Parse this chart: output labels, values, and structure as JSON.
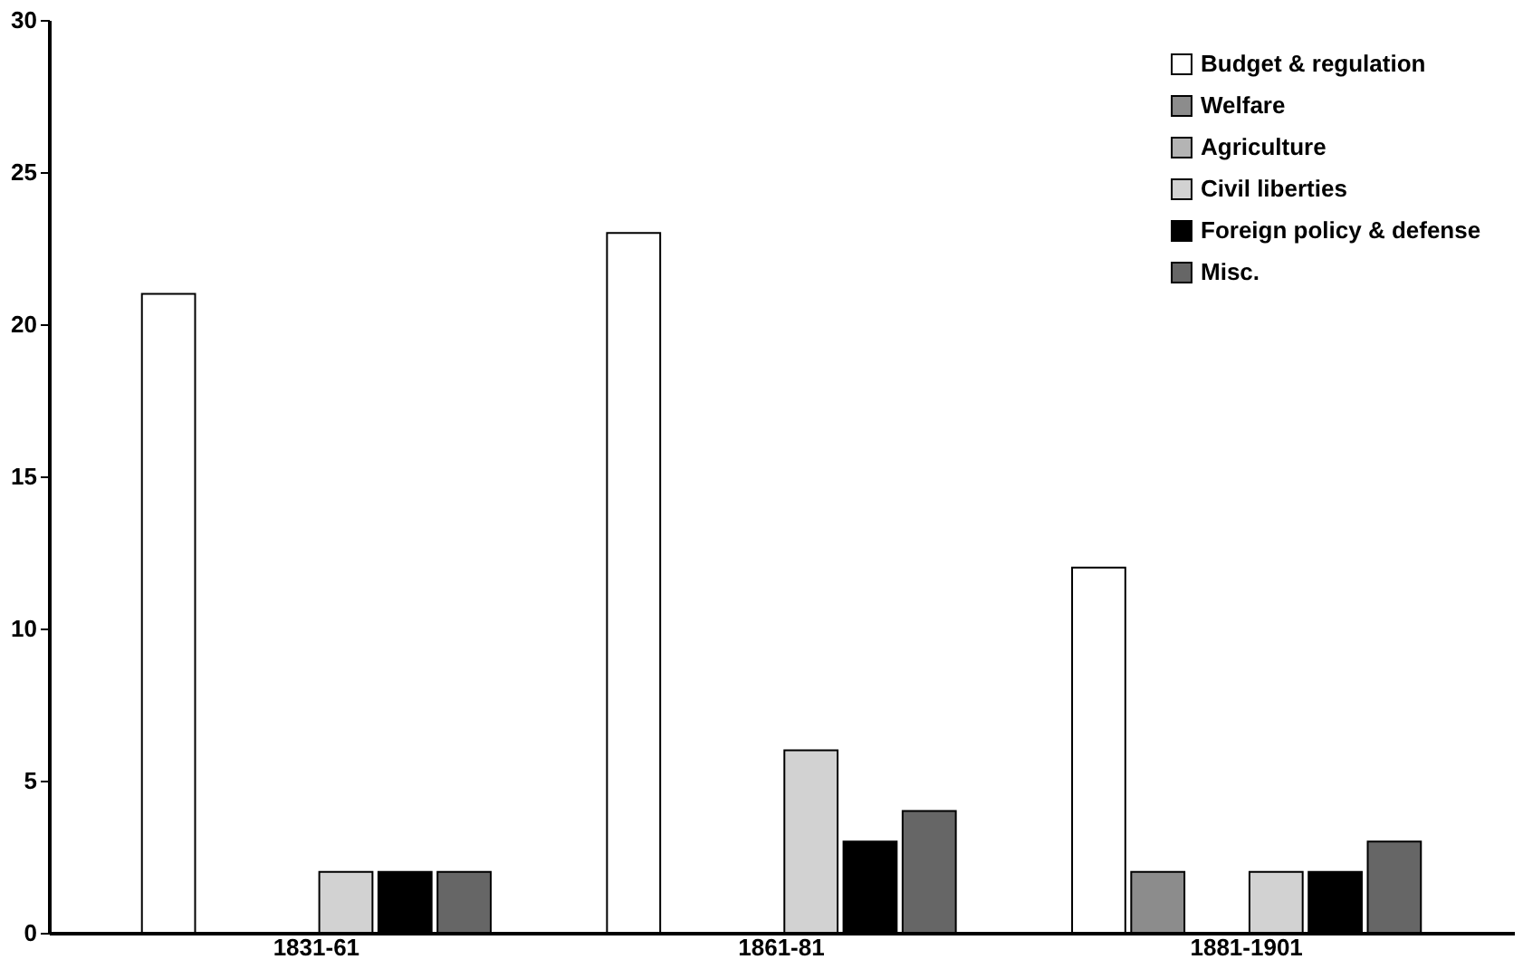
{
  "chart_data": {
    "type": "bar",
    "categories": [
      "1831-61",
      "1861-81",
      "1881-1901"
    ],
    "series": [
      {
        "name": "Budget & regulation",
        "color": "#ffffff",
        "values": [
          21,
          23,
          12
        ]
      },
      {
        "name": "Welfare",
        "color": "#8c8c8c",
        "values": [
          0,
          0,
          2
        ]
      },
      {
        "name": "Agriculture",
        "color": "#b4b4b4",
        "values": [
          0,
          0,
          0
        ]
      },
      {
        "name": "Civil liberties",
        "color": "#d2d2d2",
        "values": [
          2,
          6,
          2
        ]
      },
      {
        "name": "Foreign policy & defense",
        "color": "#000000",
        "values": [
          2,
          3,
          2
        ]
      },
      {
        "name": "Misc.",
        "color": "#666666",
        "values": [
          2,
          4,
          3
        ]
      }
    ],
    "ylim": [
      0,
      30
    ],
    "yticks": [
      0,
      5,
      10,
      15,
      20,
      25,
      30
    ],
    "grid": false,
    "legend": "top right"
  }
}
